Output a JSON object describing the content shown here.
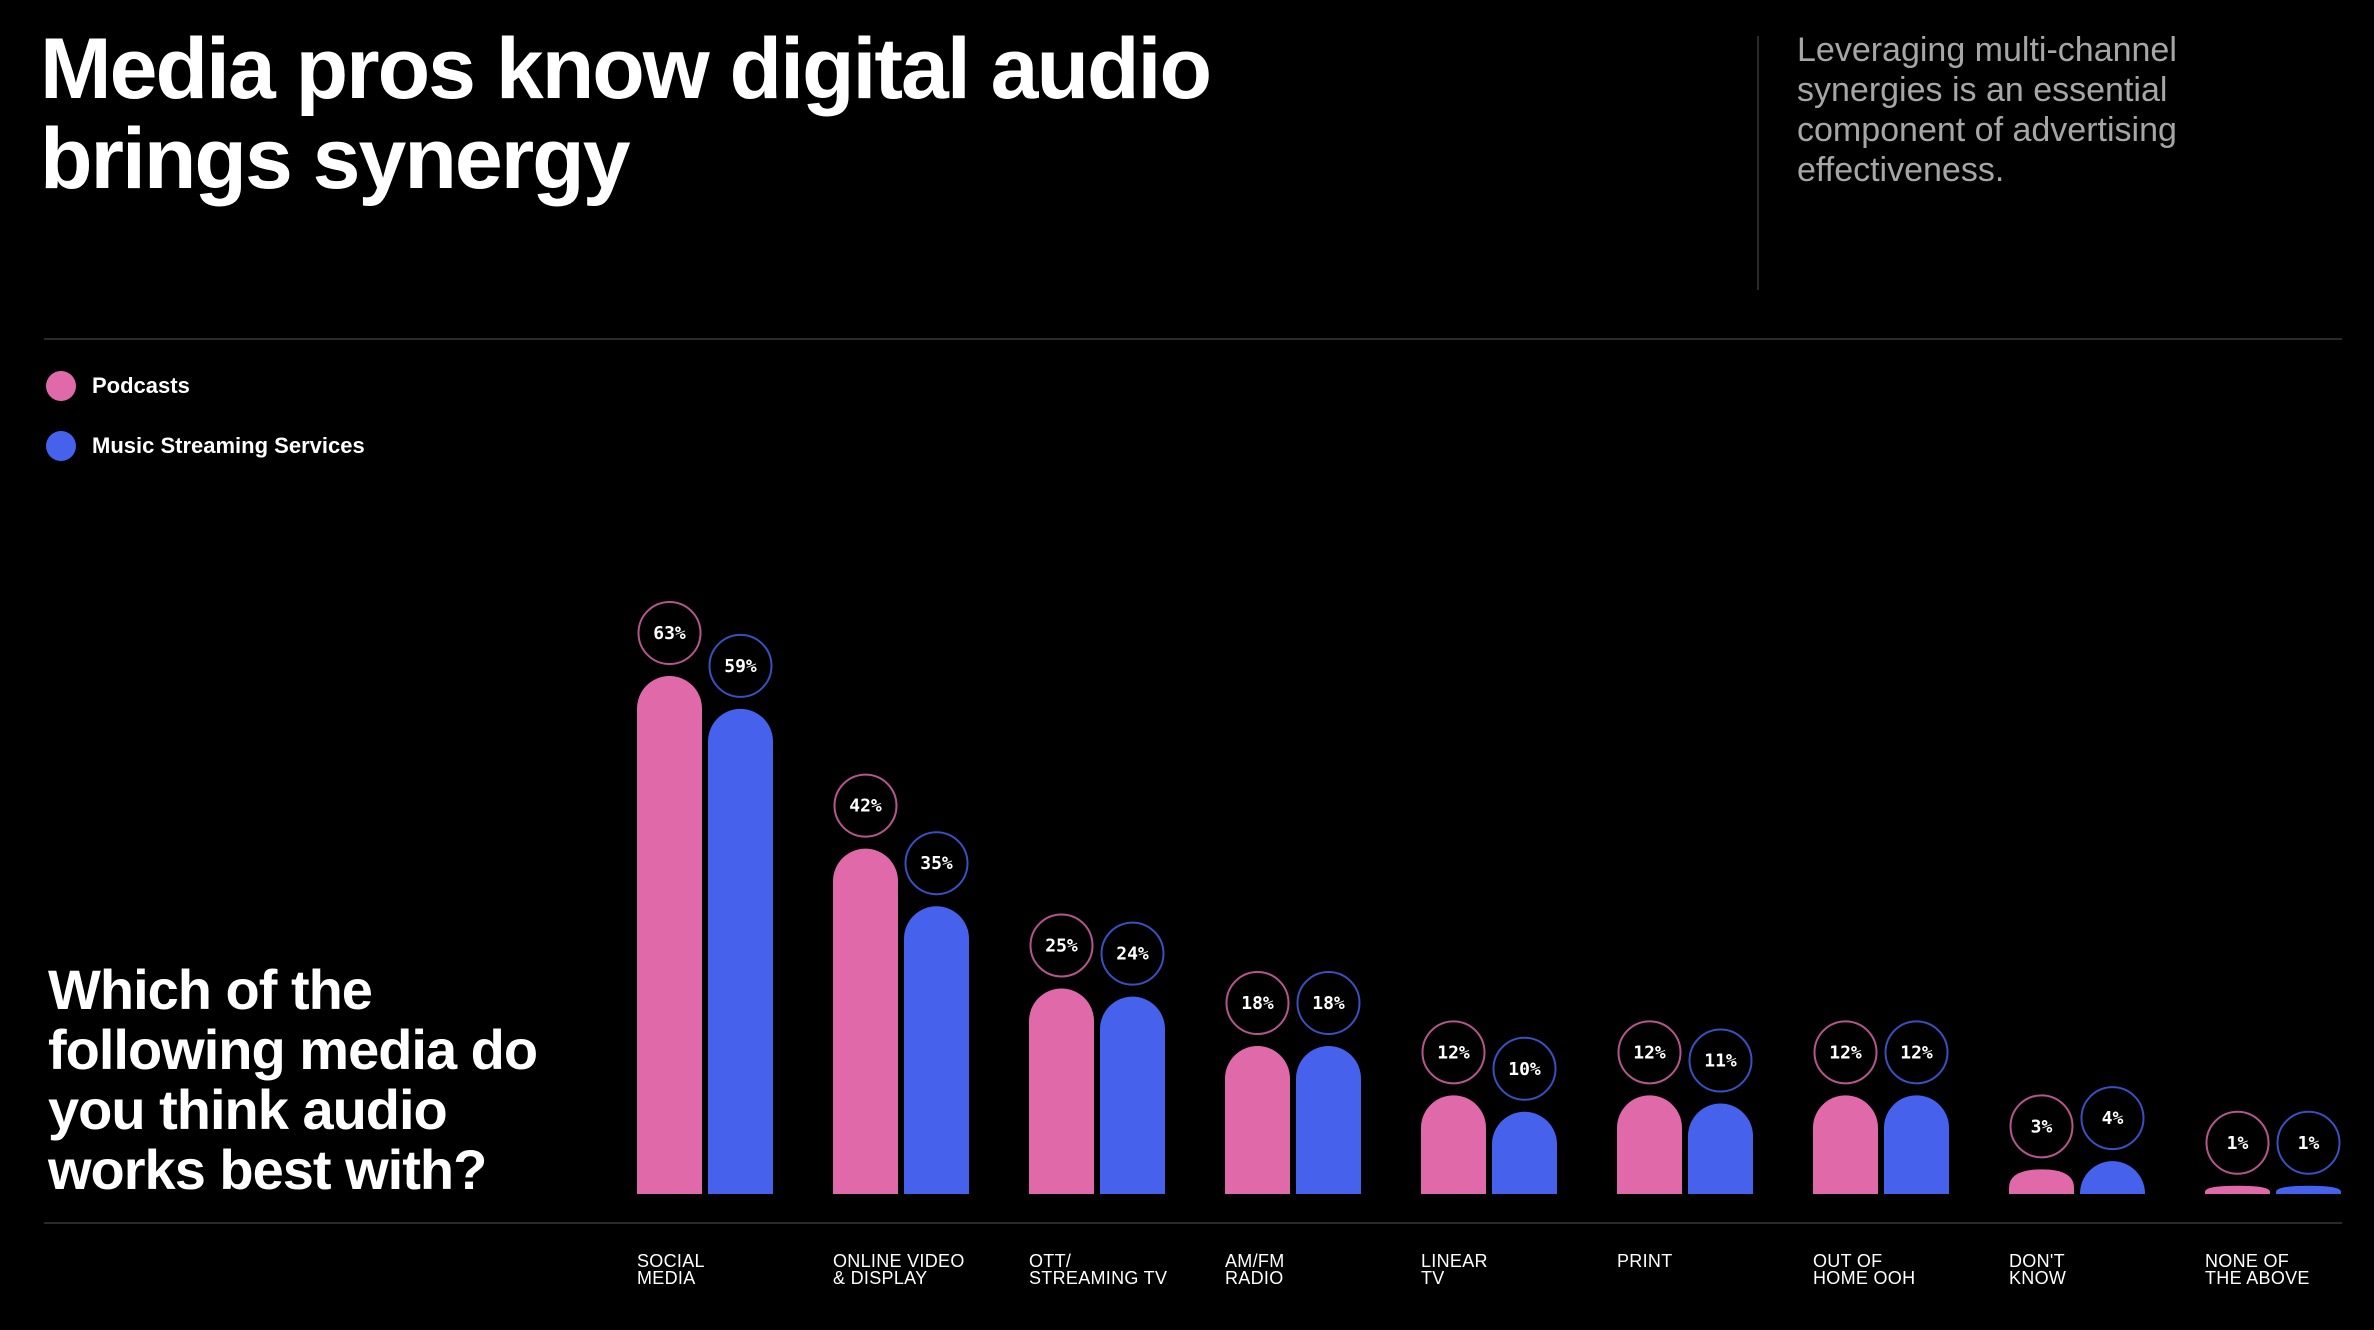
{
  "title": {
    "line1": "Media pros know digital audio",
    "line2": "brings synergy"
  },
  "subtitle": {
    "line1": "Leveraging multi-channel",
    "line2": "synergies is an essential",
    "line3": "component of advertising",
    "line4": "effectiveness."
  },
  "question": {
    "line1": "Which of the",
    "line2": "following media do",
    "line3": "you think audio",
    "line4": "works best with?"
  },
  "colors": {
    "background": "#000000",
    "podcasts": "#e06aa9",
    "music": "#4662ec",
    "podcasts_ring": "#b3578a",
    "music_ring": "#3a4fc0",
    "divider": "#2a2a2a"
  },
  "chart_data": {
    "type": "bar",
    "categories": [
      [
        "SOCIAL",
        "MEDIA"
      ],
      [
        "ONLINE VIDEO",
        "& DISPLAY"
      ],
      [
        "OTT/",
        "STREAMING TV"
      ],
      [
        "AM/FM",
        "RADIO"
      ],
      [
        "LINEAR",
        "TV"
      ],
      [
        "PRINT"
      ],
      [
        "OUT OF",
        "HOME OOH"
      ],
      [
        "DON'T",
        "KNOW"
      ],
      [
        "NONE OF",
        "THE ABOVE"
      ]
    ],
    "series": [
      {
        "name": "Podcasts",
        "values": [
          63,
          42,
          25,
          18,
          12,
          12,
          12,
          3,
          1
        ]
      },
      {
        "name": "Music Streaming Services",
        "values": [
          59,
          35,
          24,
          18,
          10,
          11,
          12,
          4,
          1
        ]
      }
    ],
    "value_suffix": "%",
    "ylim": [
      0,
      63
    ],
    "legend": "top-left",
    "grid": false
  }
}
